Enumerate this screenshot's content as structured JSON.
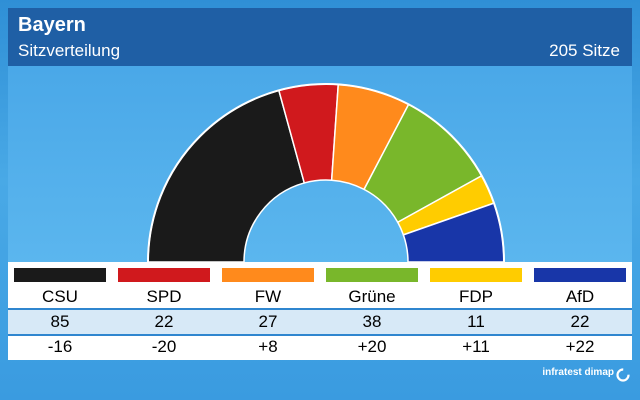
{
  "header": {
    "title": "Bayern",
    "subtitle": "Sitzverteilung",
    "total_seats": "205 Sitze"
  },
  "source": "infratest dimap",
  "chart_data": {
    "type": "hemicycle",
    "title": "Sitzverteilung",
    "total": 205,
    "categories": [
      "CSU",
      "SPD",
      "FW",
      "Grüne",
      "FDP",
      "AfD"
    ],
    "values": [
      85,
      22,
      27,
      38,
      11,
      22
    ],
    "changes": [
      "-16",
      "-20",
      "+8",
      "+20",
      "+11",
      "+22"
    ],
    "colors": [
      "#1a1a1a",
      "#d0191d",
      "#ff8a1c",
      "#79b72b",
      "#ffcc00",
      "#1836a8"
    ]
  },
  "table": {
    "parties": [
      "CSU",
      "SPD",
      "FW",
      "Grüne",
      "FDP",
      "AfD"
    ],
    "seats": [
      "85",
      "22",
      "27",
      "38",
      "11",
      "22"
    ],
    "changes": [
      "-16",
      "-20",
      "+8",
      "+20",
      "+11",
      "+22"
    ]
  }
}
